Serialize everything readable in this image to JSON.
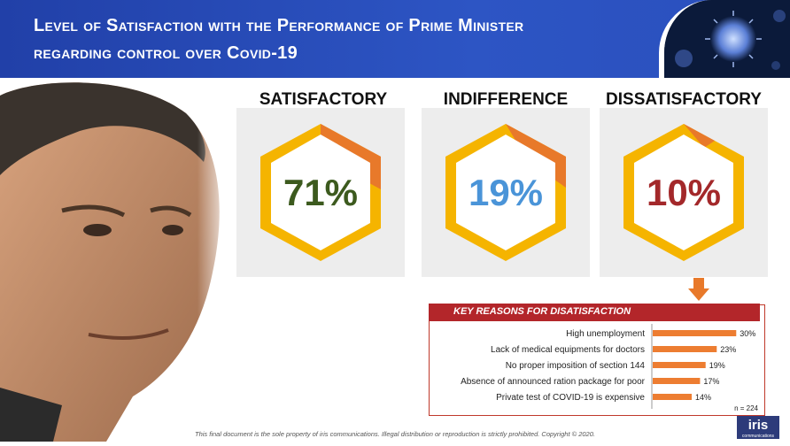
{
  "header": {
    "title_line1": "Level of Satisfaction with the Performance of Prime Minister",
    "title_line2": "regarding control over Covid-19"
  },
  "cards": [
    {
      "heading": "SATISFACTORY",
      "value": "71%",
      "color": "#3c5a1e"
    },
    {
      "heading": "INDIFFERENCE",
      "value": "19%",
      "color": "#4a94d8"
    },
    {
      "heading": "DISSATISFACTORY",
      "value": "10%",
      "color": "#a3282a"
    }
  ],
  "chart_data": {
    "type": "bar",
    "title": "KEY REASONS FOR DISATISFACTION",
    "categories": [
      "High unemployment",
      "Lack of medical equipments for doctors",
      "No proper imposition of section 144",
      "Absence of announced ration package for poor",
      "Private test of COVID-19 is expensive"
    ],
    "values": [
      30,
      23,
      19,
      17,
      14
    ],
    "value_labels": [
      "30%",
      "23%",
      "19%",
      "17%",
      "14%"
    ],
    "note": "n = 224",
    "bar_color": "#ed7d31"
  },
  "footer": {
    "text": "This final document is the sole property of iris communications. Illegal distribution or reproduction is strictly prohibited. Copyright © 2020."
  },
  "logo": {
    "text": "iris",
    "subtext": "communications"
  }
}
